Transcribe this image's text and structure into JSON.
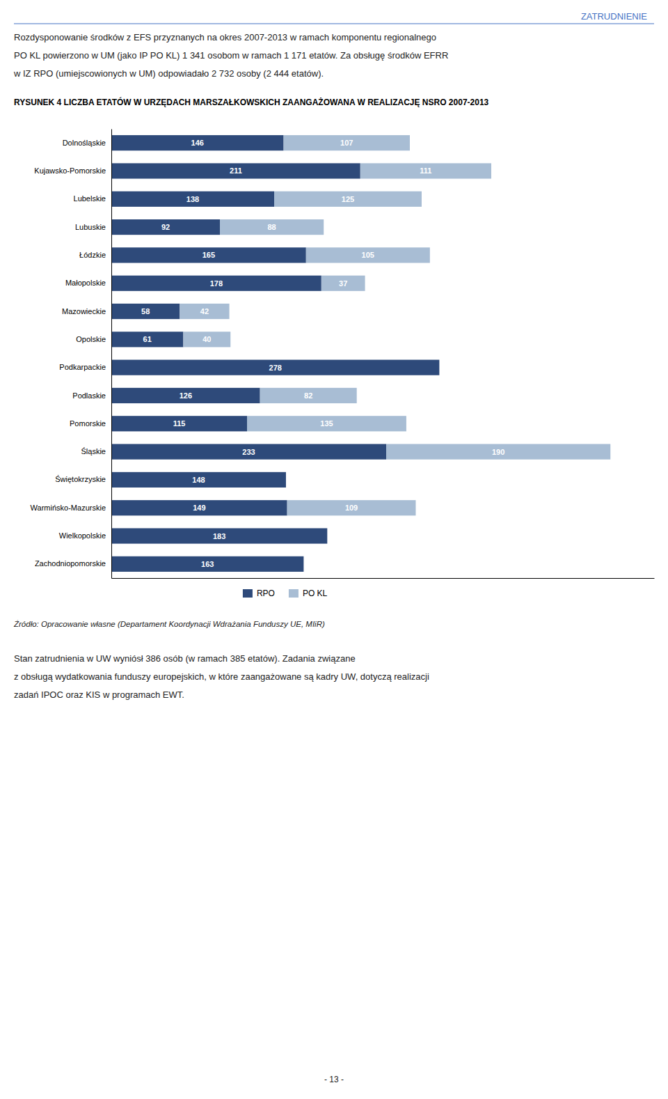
{
  "chart_data": {
    "type": "bar",
    "orientation": "horizontal",
    "stacked": true,
    "title": "RYSUNEK 4  LICZBA ETATÓW W URZĘDACH MARSZAŁKOWSKICH ZAANGAŻOWANA W REALIZACJĘ NSRO 2007-2013",
    "annotations": [
      "ZATRUDNIENIE",
      "Rozdysponowanie środków z EFS przyznanych na okres 2007-2013 w ramach komponentu regionalnego",
      "PO KL powierzono w UM (jako IP PO KL) 1 341 osobom w ramach 1 171 etatów. Za obsługę środków EFRR",
      "w IZ RPO (umiejscowionych w UM) odpowiadało 2 732 osoby (2 444 etatów).",
      "Źródło: Opracowanie własne (Departament Koordynacji Wdrażania Funduszy UE, MIiR)",
      "Stan zatrudnienia w UW wyniósł 386 osób (w ramach 385 etatów). Zadania związane",
      "z obsługą wydatkowania funduszy europejskich, w które zaangażowane są kadry UW, dotyczą realizacji",
      "zadań IPOC oraz KIS w programach EWT.",
      "- 13 -"
    ],
    "categories": [
      "Dolnośląskie",
      "Kujawsko-Pomorskie",
      "Lubelskie",
      "Lubuskie",
      "Łódzkie",
      "Małopolskie",
      "Mazowieckie",
      "Opolskie",
      "Podkarpackie",
      "Podlaskie",
      "Pomorskie",
      "Śląskie",
      "Świętokrzyskie",
      "Warmińsko-Mazurskie",
      "Wielkopolskie",
      "Zachodniopomorskie"
    ],
    "series": [
      {
        "name": "RPO",
        "color": "#2E4A7A",
        "values": [
          146,
          211,
          138,
          92,
          165,
          178,
          58,
          61,
          278,
          126,
          115,
          233,
          148,
          149,
          183,
          163
        ]
      },
      {
        "name": "PO KL",
        "color": "#A8BDD4",
        "values": [
          107,
          111,
          125,
          88,
          105,
          37,
          42,
          40,
          0,
          82,
          135,
          190,
          0,
          109,
          0,
          0
        ],
        "value_labels": [
          "107",
          "111",
          "125",
          "88",
          "105",
          "37",
          "42",
          "40",
          null,
          "82",
          "135",
          "190",
          null,
          "109",
          null,
          null
        ]
      }
    ],
    "xlim": [
      0,
      460
    ],
    "xticks": [],
    "tick_labels": "y",
    "grid": false,
    "legend": "bottom",
    "data_labels": true
  }
}
